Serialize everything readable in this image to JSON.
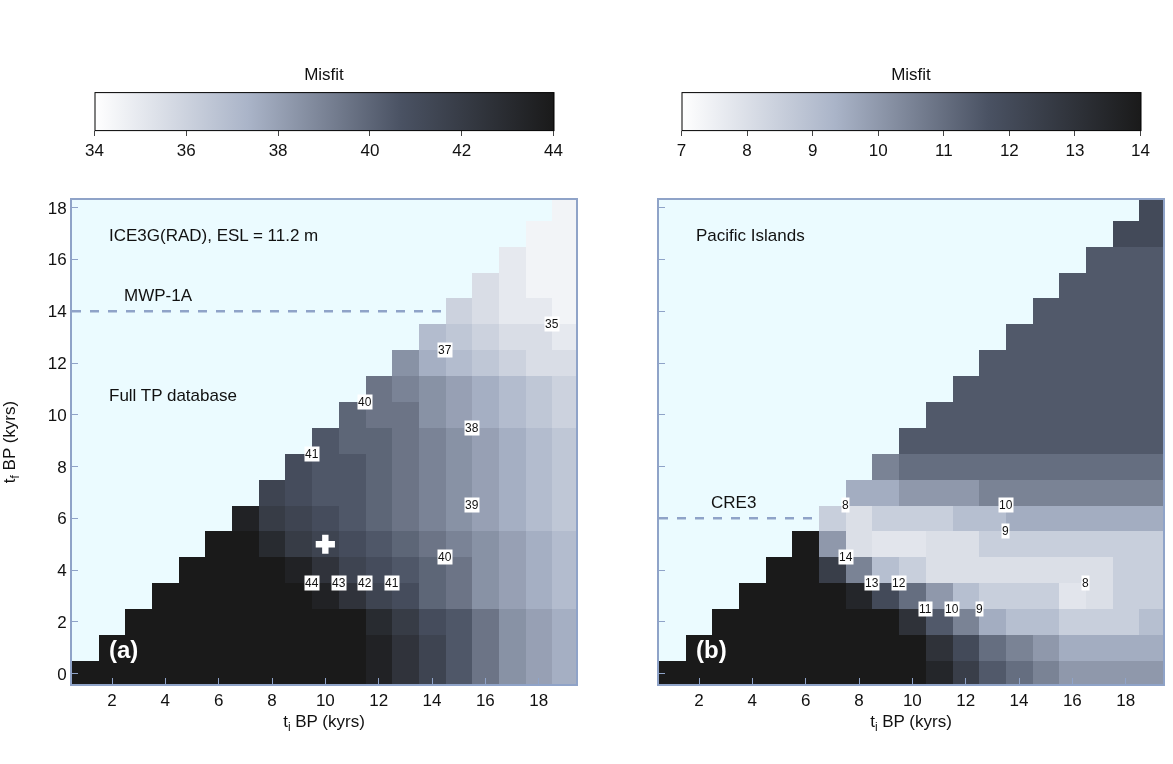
{
  "chart_data": [
    {
      "type": "heatmap",
      "xlabel": "t$_{i}$ BP (kyrs)",
      "ylabel": "t$_{f}$ BP (kyrs)",
      "clabel": "Misfit",
      "x": [
        1,
        2,
        3,
        4,
        5,
        6,
        7,
        8,
        9,
        10,
        11,
        12,
        13,
        14,
        15,
        16,
        17,
        18,
        19
      ],
      "y": [
        18,
        17,
        16,
        15,
        14,
        13,
        12,
        11,
        10,
        9,
        8,
        7,
        6,
        5,
        4,
        3,
        2,
        1,
        0
      ],
      "cells": [
        [
          null,
          null,
          null,
          null,
          null,
          null,
          null,
          null,
          null,
          null,
          null,
          null,
          null,
          null,
          null,
          null,
          null,
          null,
          34.5
        ],
        [
          null,
          null,
          null,
          null,
          null,
          null,
          null,
          null,
          null,
          null,
          null,
          null,
          null,
          null,
          null,
          null,
          null,
          34.5,
          34.5
        ],
        [
          null,
          null,
          null,
          null,
          null,
          null,
          null,
          null,
          null,
          null,
          null,
          null,
          null,
          null,
          null,
          null,
          35,
          34.5,
          34.5
        ],
        [
          null,
          null,
          null,
          null,
          null,
          null,
          null,
          null,
          null,
          null,
          null,
          null,
          null,
          null,
          null,
          35.5,
          35,
          34.5,
          34.5
        ],
        [
          null,
          null,
          null,
          null,
          null,
          null,
          null,
          null,
          null,
          null,
          null,
          null,
          null,
          null,
          36,
          35.5,
          35,
          35,
          34.5
        ],
        [
          null,
          null,
          null,
          null,
          null,
          null,
          null,
          null,
          null,
          null,
          null,
          null,
          null,
          37,
          36.5,
          36,
          35.5,
          35.5,
          35
        ],
        [
          null,
          null,
          null,
          null,
          null,
          null,
          null,
          null,
          null,
          null,
          null,
          null,
          38.5,
          37.5,
          37,
          36.5,
          36,
          35.5,
          35.5
        ],
        [
          null,
          null,
          null,
          null,
          null,
          null,
          null,
          null,
          null,
          null,
          null,
          39.5,
          39,
          38.5,
          38,
          37.5,
          37,
          36.5,
          36
        ],
        [
          null,
          null,
          null,
          null,
          null,
          null,
          null,
          null,
          null,
          null,
          40,
          39.5,
          39.5,
          38.5,
          38,
          37.5,
          37,
          36.5,
          36
        ],
        [
          null,
          null,
          null,
          null,
          null,
          null,
          null,
          null,
          null,
          40.5,
          40,
          40,
          39.5,
          39,
          38.5,
          38,
          37.5,
          37,
          36.5
        ],
        [
          null,
          null,
          null,
          null,
          null,
          null,
          null,
          null,
          41,
          40.5,
          40.5,
          40,
          39.5,
          39,
          38.5,
          38,
          37.5,
          37,
          36.5
        ],
        [
          null,
          null,
          null,
          null,
          null,
          null,
          null,
          41.5,
          41,
          40.5,
          40.5,
          40,
          39.5,
          39,
          38.5,
          38,
          37.5,
          37,
          36.5
        ],
        [
          null,
          null,
          null,
          null,
          null,
          null,
          43.5,
          42,
          41.5,
          41,
          40.5,
          40,
          39.5,
          39,
          38.5,
          38,
          37.5,
          37,
          36.5
        ],
        [
          null,
          null,
          null,
          null,
          null,
          44.5,
          44.5,
          43,
          42,
          41.5,
          41,
          40.5,
          40,
          39.5,
          39,
          38.5,
          38,
          37.5,
          37
        ],
        [
          null,
          null,
          null,
          null,
          44.5,
          44.5,
          44.5,
          44.5,
          43.5,
          42.5,
          41.5,
          41,
          40.5,
          40,
          39.5,
          38.5,
          38,
          37.5,
          37
        ],
        [
          null,
          null,
          null,
          44.5,
          44.5,
          44.5,
          44.5,
          44.5,
          44.5,
          43.5,
          42.5,
          41.5,
          41,
          40,
          39.5,
          38.5,
          38,
          37.5,
          37
        ],
        [
          null,
          null,
          44.5,
          44.5,
          44.5,
          44.5,
          44.5,
          44.5,
          44.5,
          44.5,
          44.5,
          43,
          42,
          41,
          40.5,
          39.5,
          38.5,
          38,
          37.5
        ],
        [
          null,
          44.5,
          44.5,
          44.5,
          44.5,
          44.5,
          44.5,
          44.5,
          44.5,
          44.5,
          44.5,
          43.5,
          42.5,
          41.5,
          40.5,
          39.5,
          38.5,
          38,
          37.5
        ],
        [
          44.5,
          44.5,
          44.5,
          44.5,
          44.5,
          44.5,
          44.5,
          44.5,
          44.5,
          44.5,
          44.5,
          43.5,
          42.5,
          41.5,
          40.5,
          39.5,
          38.5,
          38,
          37.5
        ]
      ],
      "colors": [
        "#ffffff",
        "#aab4c8",
        "#4a5263",
        "#1a1a1a"
      ],
      "clim": [
        34,
        44
      ],
      "cticks": [
        34,
        36,
        38,
        40,
        42,
        44
      ],
      "xlim": [
        0.5,
        19.4
      ],
      "xticks": [
        2,
        4,
        6,
        8,
        10,
        12,
        14,
        16,
        18
      ],
      "ylim": [
        -0.4,
        18.3
      ],
      "yticks": [
        0,
        2,
        4,
        6,
        8,
        10,
        12,
        14,
        16,
        18
      ],
      "series": [
        {
          "type": "scatter",
          "x": [
            10
          ],
          "values": [
            5
          ],
          "color": "#ffffff",
          "marker": "cross"
        }
      ],
      "ref_lines": [
        {
          "axis": "y",
          "value": 14,
          "label": "MWP-1A",
          "line_style": "dashed",
          "color": "#8fa3c8"
        }
      ],
      "annotations": [
        "ICE3G(RAD), ESL = 11.2 m",
        "Full TP database",
        "(a)",
        "35",
        "37",
        "40",
        "38",
        "41",
        "39",
        "40",
        "44",
        "43",
        "42",
        "41"
      ]
    },
    {
      "type": "heatmap",
      "xlabel": "t$_{i}$ BP (kyrs)",
      "clabel": "Misfit",
      "tick_labels": "x",
      "x": [
        1,
        2,
        3,
        4,
        5,
        6,
        7,
        8,
        9,
        10,
        11,
        12,
        13,
        14,
        15,
        16,
        17,
        18,
        19
      ],
      "y": [
        18,
        17,
        16,
        15,
        14,
        13,
        12,
        11,
        10,
        9,
        8,
        7,
        6,
        5,
        4,
        3,
        2,
        1,
        0
      ],
      "cells": [
        [
          null,
          null,
          null,
          null,
          null,
          null,
          null,
          null,
          null,
          null,
          null,
          null,
          null,
          null,
          null,
          null,
          null,
          null,
          12
        ],
        [
          null,
          null,
          null,
          null,
          null,
          null,
          null,
          null,
          null,
          null,
          null,
          null,
          null,
          null,
          null,
          null,
          null,
          12,
          12
        ],
        [
          null,
          null,
          null,
          null,
          null,
          null,
          null,
          null,
          null,
          null,
          null,
          null,
          null,
          null,
          null,
          null,
          11.5,
          11.5,
          11.5
        ],
        [
          null,
          null,
          null,
          null,
          null,
          null,
          null,
          null,
          null,
          null,
          null,
          null,
          null,
          null,
          null,
          11.5,
          11.5,
          11.5,
          11.5
        ],
        [
          null,
          null,
          null,
          null,
          null,
          null,
          null,
          null,
          null,
          null,
          null,
          null,
          null,
          null,
          11.5,
          11.5,
          11.5,
          11.5,
          11.5
        ],
        [
          null,
          null,
          null,
          null,
          null,
          null,
          null,
          null,
          null,
          null,
          null,
          null,
          null,
          11.5,
          11.5,
          11.5,
          11.5,
          11.5,
          11.5
        ],
        [
          null,
          null,
          null,
          null,
          null,
          null,
          null,
          null,
          null,
          null,
          null,
          null,
          11.5,
          11.5,
          11.5,
          11.5,
          11.5,
          11.5,
          11.5
        ],
        [
          null,
          null,
          null,
          null,
          null,
          null,
          null,
          null,
          null,
          null,
          null,
          11.5,
          11.5,
          11.5,
          11.5,
          11.5,
          11.5,
          11.5,
          11.5
        ],
        [
          null,
          null,
          null,
          null,
          null,
          null,
          null,
          null,
          null,
          null,
          11.5,
          11.5,
          11.5,
          11.5,
          11.5,
          11.5,
          11.5,
          11.5,
          11.5
        ],
        [
          null,
          null,
          null,
          null,
          null,
          null,
          null,
          null,
          null,
          11.5,
          11.5,
          11.5,
          11.5,
          11.5,
          11.5,
          11.5,
          11.5,
          11.5,
          11.5
        ],
        [
          null,
          null,
          null,
          null,
          null,
          null,
          null,
          null,
          10.5,
          11,
          11,
          11,
          11,
          11,
          11,
          11,
          11,
          11,
          11
        ],
        [
          null,
          null,
          null,
          null,
          null,
          null,
          null,
          9.5,
          9.5,
          10,
          10,
          10,
          10.5,
          10.5,
          10.5,
          10.5,
          10.5,
          10.5,
          10.5
        ],
        [
          null,
          null,
          null,
          null,
          null,
          null,
          8.5,
          8,
          8.5,
          8.5,
          8.5,
          9,
          9,
          9.5,
          9.5,
          9.5,
          9.5,
          9.5,
          9.5
        ],
        [
          null,
          null,
          null,
          null,
          null,
          14.5,
          10,
          8,
          7.8,
          7.8,
          8,
          8,
          8.5,
          8.5,
          8.5,
          8.5,
          8.5,
          8.5,
          8.5
        ],
        [
          null,
          null,
          null,
          null,
          14.5,
          14.5,
          12.5,
          10.5,
          9,
          8.5,
          8,
          8,
          8,
          8,
          8,
          8,
          8,
          8.5,
          8.5
        ],
        [
          null,
          null,
          null,
          14.5,
          14.5,
          14.5,
          14.5,
          13.5,
          12,
          11,
          10,
          9,
          8.5,
          8.5,
          8.5,
          7.8,
          8,
          8.5,
          8.5
        ],
        [
          null,
          null,
          14.5,
          14.5,
          14.5,
          14.5,
          14.5,
          14.5,
          14.5,
          13,
          11.5,
          10.5,
          9.5,
          9,
          9,
          8.5,
          8.5,
          8.5,
          9
        ],
        [
          null,
          14.5,
          14.5,
          14.5,
          14.5,
          14.5,
          14.5,
          14.5,
          14.5,
          14.5,
          13,
          12,
          11,
          10.5,
          10,
          9.5,
          9.5,
          9.5,
          9.5
        ],
        [
          14.5,
          14.5,
          14.5,
          14.5,
          14.5,
          14.5,
          14.5,
          14.5,
          14.5,
          14.5,
          13.5,
          12.5,
          11.5,
          11,
          10.5,
          10,
          10,
          10,
          10
        ]
      ],
      "colors": [
        "#ffffff",
        "#aab4c8",
        "#4a5263",
        "#1a1a1a"
      ],
      "clim": [
        7,
        14
      ],
      "cticks": [
        7,
        8,
        9,
        10,
        11,
        12,
        13,
        14
      ],
      "xlim": [
        0.5,
        19.4
      ],
      "xticks": [
        2,
        4,
        6,
        8,
        10,
        12,
        14,
        16,
        18
      ],
      "ylim": [
        -0.4,
        18.3
      ],
      "yticks": [
        0,
        2,
        4,
        6,
        8,
        10,
        12,
        14,
        16,
        18
      ],
      "ref_lines": [
        {
          "axis": "y",
          "value": 6,
          "label": "CRE3",
          "line_style": "dashed",
          "color": "#8fa3c8"
        }
      ],
      "annotations": [
        "Pacific Islands",
        "(b)",
        "10",
        "9",
        "8",
        "8",
        "14",
        "13",
        "12",
        "11",
        "10",
        "9"
      ]
    }
  ]
}
